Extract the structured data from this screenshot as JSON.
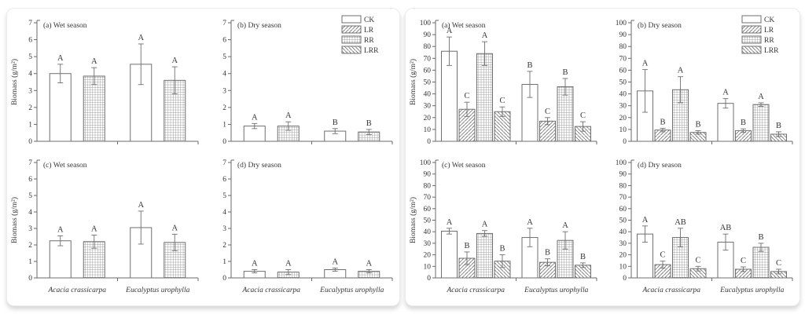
{
  "style": {
    "axis_color": "#6a6a6a",
    "bar_stroke": "#6f6f6f",
    "pattern_line": "#767676",
    "text_color": "#353535",
    "card_border": "#ececec"
  },
  "legend": {
    "entries": [
      {
        "label": "CK",
        "pattern": "plain"
      },
      {
        "label": "LR",
        "pattern": "diag-forward"
      },
      {
        "label": "RR",
        "pattern": "grid"
      },
      {
        "label": "LRR",
        "pattern": "diag-back"
      }
    ]
  },
  "categories": [
    "Acacia crassicarpa",
    "Eucalyptus urophylla"
  ],
  "chart_data": [
    {
      "panel": "left",
      "type": "bar",
      "title": "(a) Wet season",
      "ylabel": "Biomass (g/m²)",
      "ylim": [
        0,
        7
      ],
      "ytick_step": 1,
      "categories": [
        "Acacia crassicarpa",
        "Eucalyptus urophylla"
      ],
      "show_category_labels": false,
      "legend": false,
      "series": [
        {
          "name": "CK",
          "pattern": "plain",
          "values": [
            4.0,
            4.55
          ],
          "errors": [
            0.55,
            1.2
          ],
          "letters": [
            "A",
            "A"
          ]
        },
        {
          "name": "RR",
          "pattern": "grid",
          "values": [
            3.85,
            3.6
          ],
          "errors": [
            0.5,
            0.8
          ],
          "letters": [
            "A",
            "A"
          ]
        }
      ]
    },
    {
      "panel": "left",
      "type": "bar",
      "title": "(b) Dry season",
      "ylabel": "",
      "ylim": [
        0,
        7
      ],
      "ytick_step": 1,
      "categories": [
        "Acacia crassicarpa",
        "Eucalyptus urophylla"
      ],
      "show_category_labels": false,
      "legend": true,
      "series": [
        {
          "name": "CK",
          "pattern": "plain",
          "values": [
            0.9,
            0.6
          ],
          "errors": [
            0.15,
            0.15
          ],
          "letters": [
            "A",
            "B"
          ]
        },
        {
          "name": "RR",
          "pattern": "grid",
          "values": [
            0.9,
            0.55
          ],
          "errors": [
            0.25,
            0.15
          ],
          "letters": [
            "A",
            "B"
          ]
        }
      ]
    },
    {
      "panel": "left",
      "type": "bar",
      "title": "(c) Wet season",
      "ylabel": "Biomass (g/m²)",
      "ylim": [
        0,
        7
      ],
      "ytick_step": 1,
      "categories": [
        "Acacia crassicarpa",
        "Eucalyptus urophylla"
      ],
      "show_category_labels": true,
      "legend": false,
      "series": [
        {
          "name": "CK",
          "pattern": "plain",
          "values": [
            2.25,
            3.05
          ],
          "errors": [
            0.3,
            1.0
          ],
          "letters": [
            "A",
            "A"
          ]
        },
        {
          "name": "RR",
          "pattern": "grid",
          "values": [
            2.2,
            2.15
          ],
          "errors": [
            0.4,
            0.5
          ],
          "letters": [
            "A",
            "A"
          ]
        }
      ]
    },
    {
      "panel": "left",
      "type": "bar",
      "title": "(d) Dry  season",
      "ylabel": "",
      "ylim": [
        0,
        7
      ],
      "ytick_step": 1,
      "categories": [
        "Acacia crassicarpa",
        "Eucalyptus urophylla"
      ],
      "show_category_labels": true,
      "legend": false,
      "series": [
        {
          "name": "CK",
          "pattern": "plain",
          "values": [
            0.4,
            0.5
          ],
          "errors": [
            0.1,
            0.1
          ],
          "letters": [
            "A",
            "A"
          ]
        },
        {
          "name": "RR",
          "pattern": "grid",
          "values": [
            0.35,
            0.4
          ],
          "errors": [
            0.15,
            0.1
          ],
          "letters": [
            "A",
            "A"
          ]
        }
      ]
    },
    {
      "panel": "right",
      "type": "bar",
      "title": "(a) Wet season",
      "ylabel": "Biomass (g/m²)",
      "ylim": [
        0,
        100
      ],
      "ytick_step": 10,
      "categories": [
        "Acacia crassicarpa",
        "Eucalyptus urophylla"
      ],
      "show_category_labels": false,
      "legend": false,
      "series": [
        {
          "name": "CK",
          "pattern": "plain",
          "values": [
            76,
            48
          ],
          "errors": [
            12,
            11
          ],
          "letters": [
            "A",
            "B"
          ]
        },
        {
          "name": "LR",
          "pattern": "diag-forward",
          "values": [
            27,
            17
          ],
          "errors": [
            6,
            3
          ],
          "letters": [
            "C",
            "C"
          ]
        },
        {
          "name": "RR",
          "pattern": "grid",
          "values": [
            74,
            46
          ],
          "errors": [
            10,
            7
          ],
          "letters": [
            "A",
            "B"
          ]
        },
        {
          "name": "LRR",
          "pattern": "diag-back",
          "values": [
            25,
            12.5
          ],
          "errors": [
            4,
            4
          ],
          "letters": [
            "C",
            "C"
          ]
        }
      ]
    },
    {
      "panel": "right",
      "type": "bar",
      "title": "(b) Dry  season",
      "ylabel": "",
      "ylim": [
        0,
        100
      ],
      "ytick_step": 10,
      "categories": [
        "Acacia crassicarpa",
        "Eucalyptus urophylla"
      ],
      "show_category_labels": false,
      "legend": true,
      "series": [
        {
          "name": "CK",
          "pattern": "plain",
          "values": [
            42.5,
            32
          ],
          "errors": [
            18,
            4
          ],
          "letters": [
            "A",
            "A"
          ]
        },
        {
          "name": "LR",
          "pattern": "diag-forward",
          "values": [
            9.5,
            9
          ],
          "errors": [
            1.5,
            1.5
          ],
          "letters": [
            "B",
            "B"
          ]
        },
        {
          "name": "RR",
          "pattern": "grid",
          "values": [
            43.5,
            31
          ],
          "errors": [
            11,
            1.5
          ],
          "letters": [
            "A",
            "A"
          ]
        },
        {
          "name": "LRR",
          "pattern": "diag-back",
          "values": [
            7.5,
            6
          ],
          "errors": [
            1.5,
            2
          ],
          "letters": [
            "B",
            "B"
          ]
        }
      ]
    },
    {
      "panel": "right",
      "type": "bar",
      "title": "(c) Wet season",
      "ylabel": "Biomass (g/m²)",
      "ylim": [
        0,
        100
      ],
      "ytick_step": 10,
      "categories": [
        "Acacia crassicarpa",
        "Eucalyptus urophylla"
      ],
      "show_category_labels": true,
      "legend": false,
      "series": [
        {
          "name": "CK",
          "pattern": "plain",
          "values": [
            40.5,
            35
          ],
          "errors": [
            2.5,
            8
          ],
          "letters": [
            "A",
            "A"
          ]
        },
        {
          "name": "LR",
          "pattern": "diag-forward",
          "values": [
            17,
            13.5
          ],
          "errors": [
            5.5,
            3
          ],
          "letters": [
            "B",
            "B"
          ]
        },
        {
          "name": "RR",
          "pattern": "grid",
          "values": [
            38.5,
            32.5
          ],
          "errors": [
            2.5,
            7.5
          ],
          "letters": [
            "A",
            "A"
          ]
        },
        {
          "name": "LRR",
          "pattern": "diag-back",
          "values": [
            14.5,
            11
          ],
          "errors": [
            5.5,
            2
          ],
          "letters": [
            "B",
            "B"
          ]
        }
      ]
    },
    {
      "panel": "right",
      "type": "bar",
      "title": "(d) Dry  season",
      "ylabel": "",
      "ylim": [
        0,
        100
      ],
      "ytick_step": 10,
      "categories": [
        "Acacia crassicarpa",
        "Eucalyptus urophylla"
      ],
      "show_category_labels": true,
      "legend": false,
      "series": [
        {
          "name": "CK",
          "pattern": "plain",
          "values": [
            38,
            31
          ],
          "errors": [
            7,
            7
          ],
          "letters": [
            "A",
            "AB"
          ]
        },
        {
          "name": "LR",
          "pattern": "diag-forward",
          "values": [
            11.5,
            7.5
          ],
          "errors": [
            3,
            2
          ],
          "letters": [
            "C",
            "C"
          ]
        },
        {
          "name": "RR",
          "pattern": "grid",
          "values": [
            35,
            26.5
          ],
          "errors": [
            8,
            3.5
          ],
          "letters": [
            "AB",
            "B"
          ]
        },
        {
          "name": "LRR",
          "pattern": "diag-back",
          "values": [
            8,
            5.5
          ],
          "errors": [
            2,
            2
          ],
          "letters": [
            "C",
            "C"
          ]
        }
      ]
    }
  ]
}
